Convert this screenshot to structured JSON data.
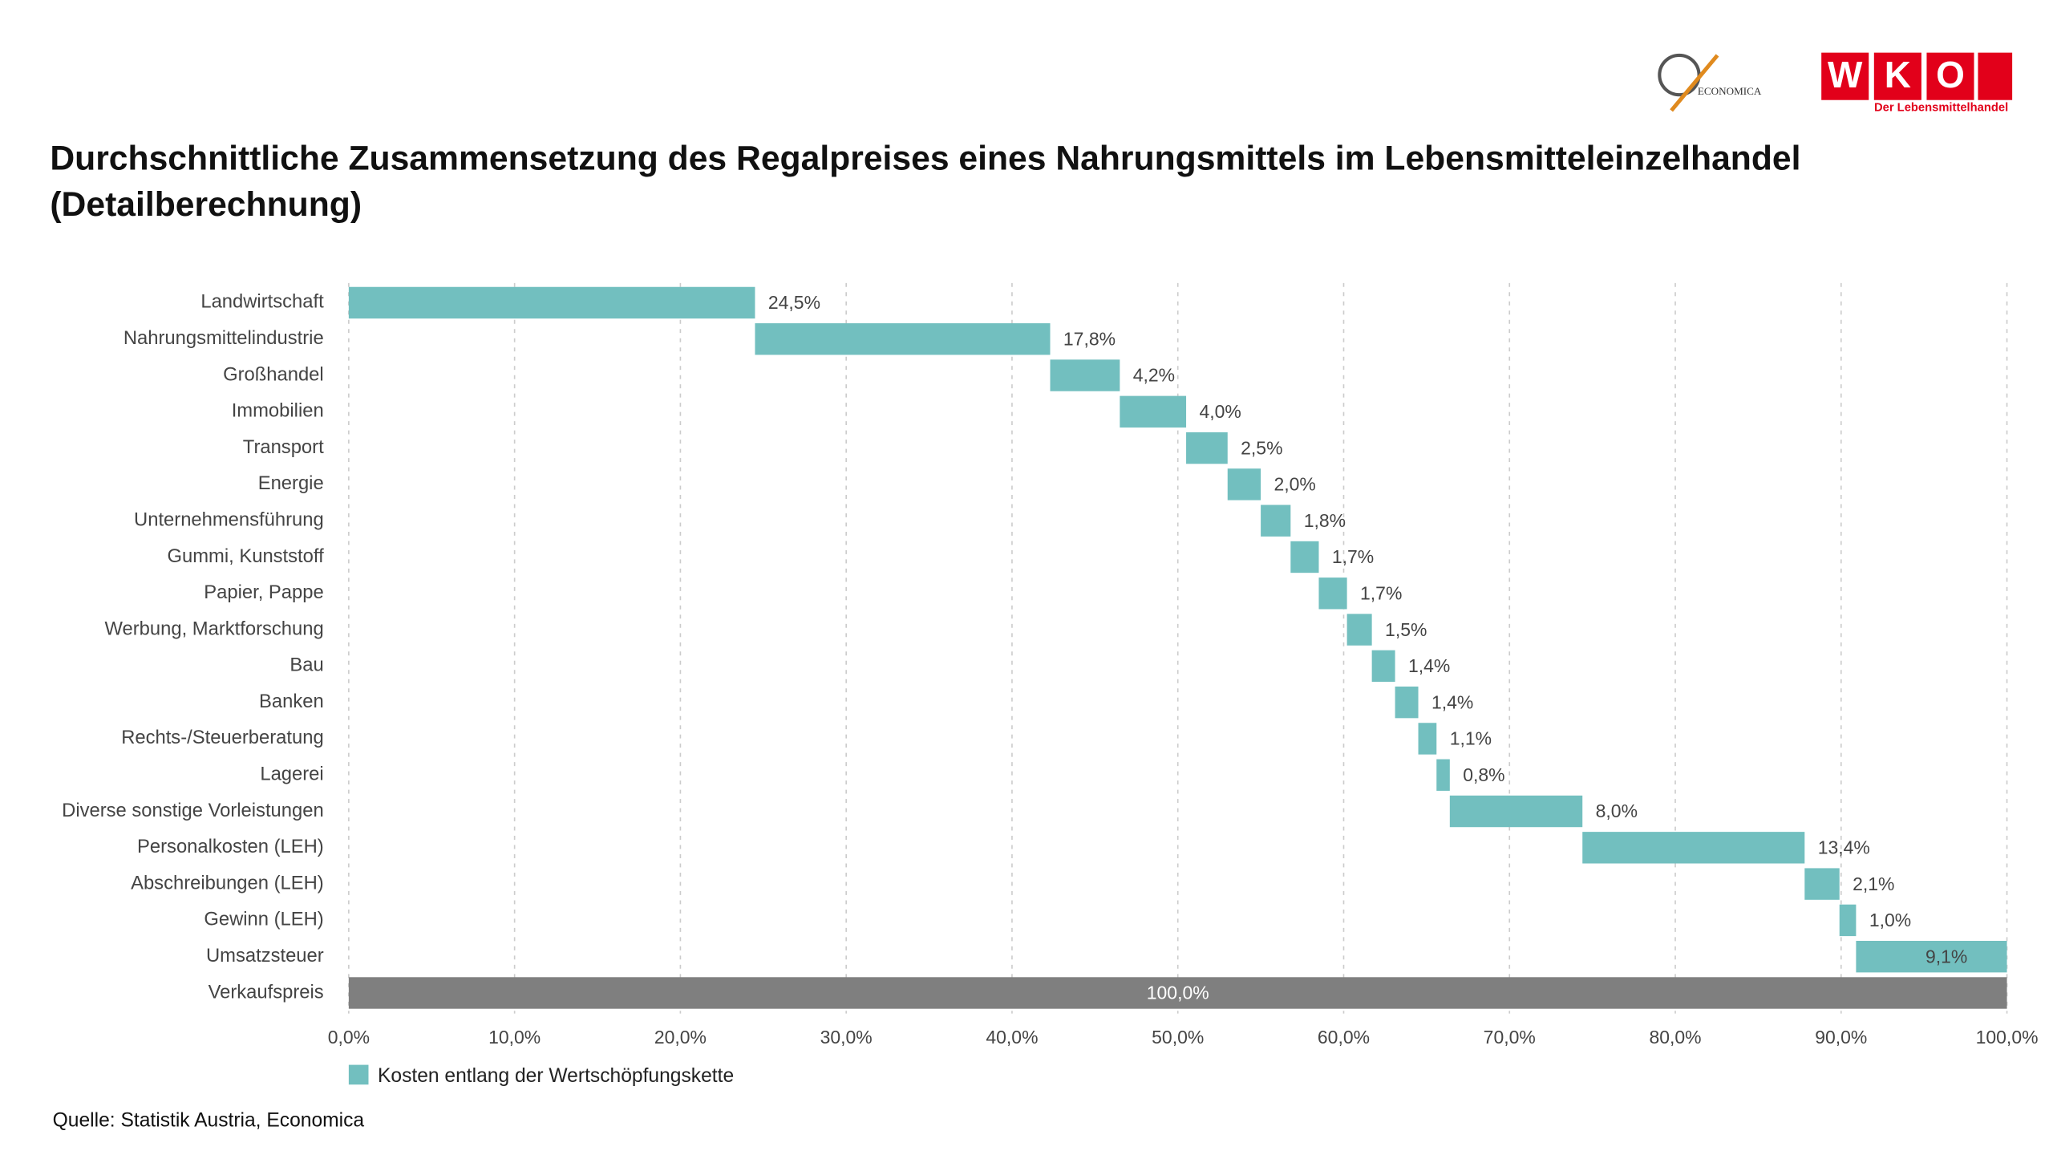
{
  "chart_data": {
    "type": "waterfall",
    "title": [
      "Durchschnittliche Zusammensetzung des Regalpreises eines Nahrungsmittels im Lebensmitteleinzelhandel",
      "(Detailberechnung)"
    ],
    "categories": [
      "Landwirtschaft",
      "Nahrungsmittelindustrie",
      "Großhandel",
      "Immobilien",
      "Transport",
      "Energie",
      "Unternehmensführung",
      "Gummi, Kunststoff",
      "Papier, Pappe",
      "Werbung, Marktforschung",
      "Bau",
      "Banken",
      "Rechts-/Steuerberatung",
      "Lagerei",
      "Diverse sonstige Vorleistungen",
      "Personalkosten (LEH)",
      "Abschreibungen (LEH)",
      "Gewinn (LEH)",
      "Umsatzsteuer",
      "Verkaufspreis"
    ],
    "series": [
      {
        "name": "Kosten entlang der Wertschöpfungskette",
        "color": "#72bfbf",
        "values": [
          24.5,
          17.8,
          4.2,
          4.0,
          2.5,
          2.0,
          1.8,
          1.7,
          1.7,
          1.5,
          1.4,
          1.4,
          1.1,
          0.8,
          8.0,
          13.4,
          2.1,
          1.0,
          9.1,
          null
        ],
        "value_labels": [
          "24,5%",
          "17,8%",
          "4,2%",
          "4,0%",
          "2,5%",
          "2,0%",
          "1,8%",
          "1,7%",
          "1,7%",
          "1,5%",
          "1,4%",
          "1,4%",
          "1,1%",
          "0,8%",
          "8,0%",
          "13,4%",
          "2,1%",
          "1,0%",
          "9,1%",
          null
        ]
      }
    ],
    "total": {
      "value": 100,
      "label": "100,0%",
      "color": "#7f7f7f"
    },
    "xlim": [
      0,
      100
    ],
    "xticks": [
      {
        "value": 0,
        "label": "0,0%"
      },
      {
        "value": 10,
        "label": "10,0%"
      },
      {
        "value": 20,
        "label": "20,0%"
      },
      {
        "value": 30,
        "label": "30,0%"
      },
      {
        "value": 40,
        "label": "40,0%"
      },
      {
        "value": 50,
        "label": "50,0%"
      },
      {
        "value": 60,
        "label": "60,0%"
      },
      {
        "value": 70,
        "label": "70,0%"
      },
      {
        "value": 80,
        "label": "80,0%"
      },
      {
        "value": 90,
        "label": "90,0%"
      },
      {
        "value": 100,
        "label": "100,0%"
      }
    ],
    "grid": true,
    "source": "Quelle: Statistik Austria, Economica",
    "logos": {
      "economica": "ECONOMICA",
      "wko_letters": [
        "W",
        "K",
        "O"
      ],
      "wko_subtitle": "Der Lebensmittelhandel"
    }
  }
}
